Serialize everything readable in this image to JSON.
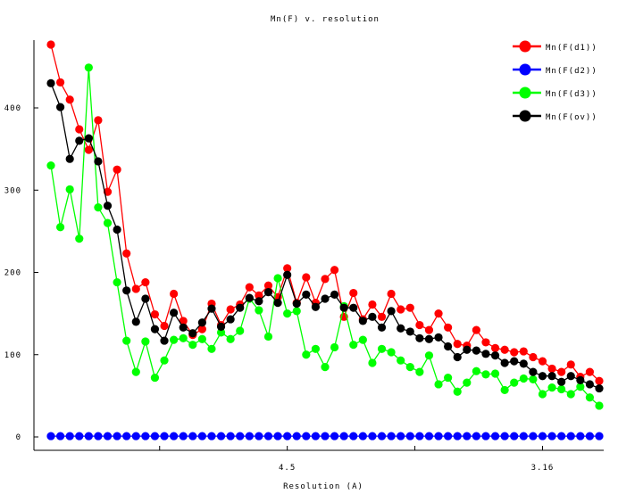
{
  "chart_data": {
    "type": "line",
    "title": "Mn(F) v. resolution",
    "xlabel": "Resolution (A)",
    "ylabel": "",
    "x_index": [
      0,
      1,
      2,
      3,
      4,
      5,
      6,
      7,
      8,
      9,
      10,
      11,
      12,
      13,
      14,
      15,
      16,
      17,
      18,
      19,
      20,
      21,
      22,
      23,
      24,
      25,
      26,
      27,
      28,
      29,
      30,
      31,
      32,
      33,
      34,
      35,
      36,
      37,
      38,
      39,
      40,
      41,
      42,
      43,
      44,
      45,
      46,
      47,
      48,
      49,
      50,
      51,
      52,
      53,
      54,
      55,
      56,
      57,
      58
    ],
    "xlim": [
      -0.3,
      58.3
    ],
    "x_ticks": [
      {
        "index": 11.5,
        "label": ""
      },
      {
        "index": 25,
        "label": "4.5"
      },
      {
        "index": 38.5,
        "label": ""
      },
      {
        "index": 52,
        "label": "3.16"
      }
    ],
    "ylim": [
      0,
      475
    ],
    "y_ticks": [
      0,
      100,
      200,
      300,
      400
    ],
    "legend_position": "top-right",
    "series": [
      {
        "name": "Mn(F(d1))",
        "color": "#ff0000",
        "values": [
          477,
          431,
          410,
          374,
          349,
          385,
          298,
          325,
          223,
          180,
          188,
          149,
          135,
          174,
          141,
          124,
          131,
          162,
          136,
          155,
          161,
          182,
          172,
          184,
          170,
          205,
          163,
          194,
          163,
          192,
          203,
          146,
          175,
          143,
          161,
          146,
          174,
          155,
          157,
          136,
          130,
          150,
          133,
          113,
          111,
          130,
          115,
          108,
          106,
          103,
          104,
          97,
          92,
          83,
          79,
          88,
          73,
          79,
          68
        ]
      },
      {
        "name": "Mn(F(d2))",
        "color": "#0000ff",
        "values": [
          1,
          1,
          1,
          1,
          1,
          1,
          1,
          1,
          1,
          1,
          1,
          1,
          1,
          1,
          1,
          1,
          1,
          1,
          1,
          1,
          1,
          1,
          1,
          1,
          1,
          1,
          1,
          1,
          1,
          1,
          1,
          1,
          1,
          1,
          1,
          1,
          1,
          1,
          1,
          1,
          1,
          1,
          1,
          1,
          1,
          1,
          1,
          1,
          1,
          1,
          1,
          1,
          1,
          1,
          1,
          1,
          1,
          1,
          1
        ]
      },
      {
        "name": "Mn(F(d3))",
        "color": "#00ff00",
        "values": [
          330,
          255,
          301,
          241,
          449,
          279,
          260,
          188,
          117,
          79,
          116,
          72,
          93,
          118,
          120,
          112,
          119,
          107,
          127,
          119,
          129,
          168,
          154,
          122,
          193,
          150,
          153,
          100,
          107,
          85,
          109,
          159,
          112,
          118,
          90,
          107,
          103,
          93,
          85,
          79,
          99,
          64,
          72,
          55,
          66,
          80,
          76,
          77,
          57,
          66,
          71,
          70,
          52,
          60,
          58,
          52,
          61,
          48,
          38
        ]
      },
      {
        "name": "Mn(F(ov))",
        "color": "#000000",
        "values": [
          430,
          401,
          338,
          360,
          363,
          335,
          281,
          252,
          178,
          140,
          168,
          131,
          117,
          151,
          133,
          126,
          139,
          156,
          134,
          143,
          157,
          169,
          165,
          176,
          163,
          197,
          162,
          173,
          158,
          168,
          173,
          157,
          157,
          141,
          146,
          133,
          153,
          132,
          128,
          120,
          119,
          121,
          110,
          97,
          106,
          105,
          101,
          99,
          90,
          92,
          89,
          79,
          74,
          74,
          67,
          74,
          69,
          64,
          59
        ]
      }
    ]
  }
}
